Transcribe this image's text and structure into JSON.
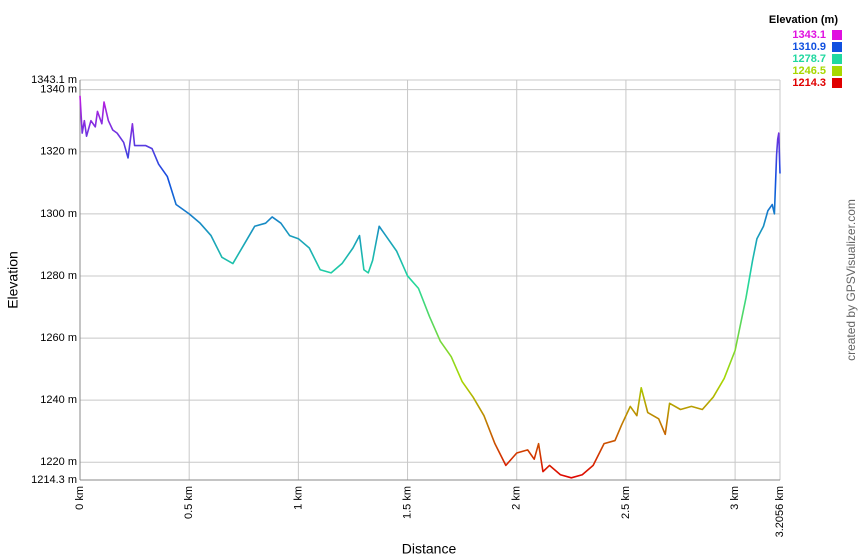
{
  "chart_data": {
    "type": "line",
    "x_label": "Distance",
    "y_label": "Elevation",
    "credit": "created by GPSVisualizer.com",
    "legend_title": "Elevation (m)",
    "color_scale": [
      {
        "value": 1343.1,
        "color": "#e010e0"
      },
      {
        "value": 1310.9,
        "color": "#1050e0"
      },
      {
        "value": 1278.7,
        "color": "#20d8a0"
      },
      {
        "value": 1246.5,
        "color": "#a8d800"
      },
      {
        "value": 1214.3,
        "color": "#e00000"
      }
    ],
    "grid": true,
    "xlim": [
      0,
      3.2056
    ],
    "ylim": [
      1214.3,
      1343.1
    ],
    "xticks": [
      {
        "value": 0,
        "label": "0 km"
      },
      {
        "value": 0.5,
        "label": "0.5 km"
      },
      {
        "value": 1,
        "label": "1 km"
      },
      {
        "value": 1.5,
        "label": "1.5 km"
      },
      {
        "value": 2,
        "label": "2 km"
      },
      {
        "value": 2.5,
        "label": "2.5 km"
      },
      {
        "value": 3,
        "label": "3 km"
      },
      {
        "value": 3.2056,
        "label": "3.2056 km"
      }
    ],
    "yticks": [
      {
        "value": 1214.3,
        "label": "1214.3 m"
      },
      {
        "value": 1220,
        "label": "1220 m"
      },
      {
        "value": 1240,
        "label": "1240 m"
      },
      {
        "value": 1260,
        "label": "1260 m"
      },
      {
        "value": 1280,
        "label": "1280 m"
      },
      {
        "value": 1300,
        "label": "1300 m"
      },
      {
        "value": 1320,
        "label": "1320 m"
      },
      {
        "value": 1340,
        "label": "1340 m"
      },
      {
        "value": 1343.1,
        "label": "1343.1 m"
      }
    ],
    "x": [
      0,
      0.01,
      0.02,
      0.03,
      0.05,
      0.07,
      0.08,
      0.1,
      0.11,
      0.13,
      0.15,
      0.17,
      0.2,
      0.22,
      0.24,
      0.25,
      0.3,
      0.33,
      0.36,
      0.4,
      0.44,
      0.5,
      0.55,
      0.6,
      0.65,
      0.7,
      0.75,
      0.8,
      0.85,
      0.88,
      0.92,
      0.96,
      1,
      1.05,
      1.1,
      1.15,
      1.2,
      1.25,
      1.28,
      1.3,
      1.32,
      1.34,
      1.37,
      1.4,
      1.45,
      1.5,
      1.55,
      1.6,
      1.65,
      1.7,
      1.75,
      1.8,
      1.85,
      1.9,
      1.95,
      2,
      2.05,
      2.08,
      2.1,
      2.12,
      2.15,
      2.2,
      2.25,
      2.3,
      2.35,
      2.4,
      2.45,
      2.48,
      2.52,
      2.55,
      2.57,
      2.6,
      2.65,
      2.68,
      2.7,
      2.75,
      2.8,
      2.85,
      2.9,
      2.95,
      3,
      3.05,
      3.08,
      3.1,
      3.13,
      3.15,
      3.17,
      3.18,
      3.19,
      3.195,
      3.2,
      3.2056
    ],
    "values": [
      1338,
      1326,
      1330,
      1325,
      1330,
      1328,
      1333,
      1329,
      1336,
      1330,
      1327,
      1326,
      1323,
      1318,
      1329,
      1322,
      1322,
      1321,
      1316,
      1312,
      1303,
      1300,
      1297,
      1293,
      1286,
      1284,
      1290,
      1296,
      1297,
      1299,
      1297,
      1293,
      1292,
      1289,
      1282,
      1281,
      1284,
      1289,
      1293,
      1282,
      1281,
      1285,
      1296,
      1293,
      1288,
      1280,
      1276,
      1267,
      1259,
      1254,
      1246,
      1241,
      1235,
      1226,
      1219,
      1223,
      1224,
      1221,
      1226,
      1217,
      1219,
      1216,
      1215,
      1216,
      1219,
      1226,
      1227,
      1232,
      1238,
      1235,
      1244,
      1236,
      1234,
      1229,
      1239,
      1237,
      1238,
      1237,
      1241,
      1247,
      1256,
      1273,
      1285,
      1292,
      1296,
      1301,
      1303,
      1300,
      1319,
      1324,
      1326,
      1313
    ]
  }
}
